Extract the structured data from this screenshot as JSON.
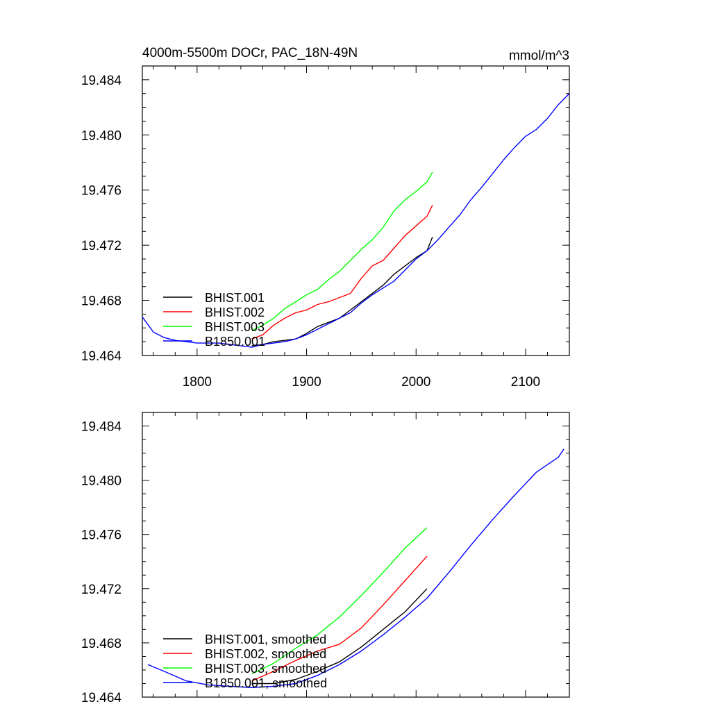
{
  "chart_data": [
    {
      "type": "line",
      "title": "4000m-5500m DOCr, PAC_18N-49N",
      "units": "mmol/m^3",
      "xlim": [
        1750,
        2140
      ],
      "ylim": [
        19.464,
        19.485
      ],
      "xticks": [
        1800,
        1900,
        2000,
        2100
      ],
      "xtick_labels": [
        "1800",
        "1900",
        "2000",
        "2100"
      ],
      "yticks": [
        19.464,
        19.468,
        19.472,
        19.476,
        19.48,
        19.484
      ],
      "ytick_labels": [
        "19.464",
        "19.468",
        "19.472",
        "19.476",
        "19.480",
        "19.484"
      ],
      "legend_position": "bottom-left",
      "series": [
        {
          "name": "BHIST.001",
          "color": "#000000",
          "x": [
            1850,
            1860,
            1870,
            1880,
            1890,
            1900,
            1910,
            1920,
            1930,
            1940,
            1950,
            1960,
            1970,
            1980,
            1990,
            2000,
            2010,
            2015
          ],
          "y": [
            19.4647,
            19.4648,
            19.465,
            19.4651,
            19.4652,
            19.4656,
            19.4661,
            19.4664,
            19.4667,
            19.4673,
            19.4679,
            19.4685,
            19.4691,
            19.4699,
            19.4705,
            19.4711,
            19.4716,
            19.4726
          ]
        },
        {
          "name": "BHIST.002",
          "color": "#ff0000",
          "x": [
            1850,
            1860,
            1870,
            1880,
            1890,
            1900,
            1910,
            1920,
            1930,
            1940,
            1950,
            1960,
            1970,
            1980,
            1990,
            2000,
            2010,
            2015
          ],
          "y": [
            19.4652,
            19.4655,
            19.4662,
            19.4667,
            19.4671,
            19.4673,
            19.4677,
            19.4679,
            19.4682,
            19.4685,
            19.4696,
            19.4705,
            19.4709,
            19.4718,
            19.4727,
            19.4734,
            19.4741,
            19.4749
          ]
        },
        {
          "name": "BHIST.003",
          "color": "#00ff00",
          "x": [
            1850,
            1860,
            1870,
            1880,
            1890,
            1900,
            1910,
            1920,
            1930,
            1940,
            1950,
            1960,
            1970,
            1980,
            1990,
            2000,
            2010,
            2015
          ],
          "y": [
            19.4658,
            19.4662,
            19.4667,
            19.4674,
            19.4679,
            19.4684,
            19.4688,
            19.4695,
            19.4701,
            19.4709,
            19.4717,
            19.4724,
            19.4733,
            19.4745,
            19.4753,
            19.4759,
            19.4766,
            19.4773
          ]
        },
        {
          "name": "B1850.001",
          "color": "#0000ff",
          "x": [
            1750,
            1760,
            1770,
            1780,
            1790,
            1800,
            1810,
            1820,
            1830,
            1840,
            1850,
            1860,
            1870,
            1880,
            1890,
            1900,
            1910,
            1920,
            1930,
            1940,
            1950,
            1960,
            1970,
            1980,
            1990,
            2000,
            2010,
            2020,
            2030,
            2040,
            2050,
            2060,
            2070,
            2080,
            2090,
            2100,
            2110,
            2120,
            2130,
            2140
          ],
          "y": [
            19.4668,
            19.4657,
            19.4653,
            19.4651,
            19.465,
            19.4649,
            19.4649,
            19.4649,
            19.4648,
            19.4647,
            19.4646,
            19.4648,
            19.4649,
            19.465,
            19.4652,
            19.4655,
            19.4659,
            19.4663,
            19.4667,
            19.4671,
            19.4678,
            19.4684,
            19.4689,
            19.4694,
            19.4702,
            19.471,
            19.4716,
            19.4724,
            19.4733,
            19.4742,
            19.4753,
            19.4762,
            19.4772,
            19.4782,
            19.4791,
            19.4799,
            19.4804,
            19.4812,
            19.4822,
            19.483
          ]
        }
      ]
    },
    {
      "type": "line",
      "xlim": [
        1750,
        2140
      ],
      "ylim": [
        19.464,
        19.485
      ],
      "xticks": [
        1800,
        1900,
        2000,
        2100
      ],
      "yticks": [
        19.464,
        19.468,
        19.472,
        19.476,
        19.48,
        19.484
      ],
      "ytick_labels": [
        "19.464",
        "19.468",
        "19.472",
        "19.476",
        "19.480",
        "19.484"
      ],
      "legend_position": "bottom-left",
      "series": [
        {
          "name": "BHIST.001, smoothed",
          "color": "#000000",
          "x": [
            1850,
            1870,
            1890,
            1910,
            1930,
            1950,
            1970,
            1990,
            2010
          ],
          "y": [
            19.465,
            19.465,
            19.4653,
            19.4659,
            19.4666,
            19.4677,
            19.469,
            19.4703,
            19.472
          ]
        },
        {
          "name": "BHIST.002, smoothed",
          "color": "#ff0000",
          "x": [
            1850,
            1870,
            1890,
            1910,
            1930,
            1950,
            1970,
            1990,
            2010
          ],
          "y": [
            19.4652,
            19.4659,
            19.4667,
            19.4674,
            19.4679,
            19.4691,
            19.4708,
            19.4726,
            19.4744
          ]
        },
        {
          "name": "BHIST.003, smoothed",
          "color": "#00ff00",
          "x": [
            1850,
            1870,
            1890,
            1910,
            1930,
            1950,
            1970,
            1990,
            2010
          ],
          "y": [
            19.4657,
            19.4665,
            19.4676,
            19.4686,
            19.4699,
            19.4715,
            19.4732,
            19.475,
            19.4765
          ]
        },
        {
          "name": "B1850.001, smoothed",
          "color": "#0000ff",
          "x": [
            1755,
            1770,
            1790,
            1810,
            1830,
            1850,
            1870,
            1890,
            1910,
            1930,
            1950,
            1970,
            1990,
            2010,
            2030,
            2050,
            2070,
            2090,
            2110,
            2130,
            2135
          ],
          "y": [
            19.4664,
            19.4659,
            19.4652,
            19.4649,
            19.4648,
            19.4647,
            19.4648,
            19.465,
            19.4656,
            19.4664,
            19.4674,
            19.4686,
            19.4699,
            19.4713,
            19.4732,
            19.4752,
            19.4771,
            19.4789,
            19.4806,
            19.4817,
            19.4823
          ]
        }
      ]
    }
  ]
}
